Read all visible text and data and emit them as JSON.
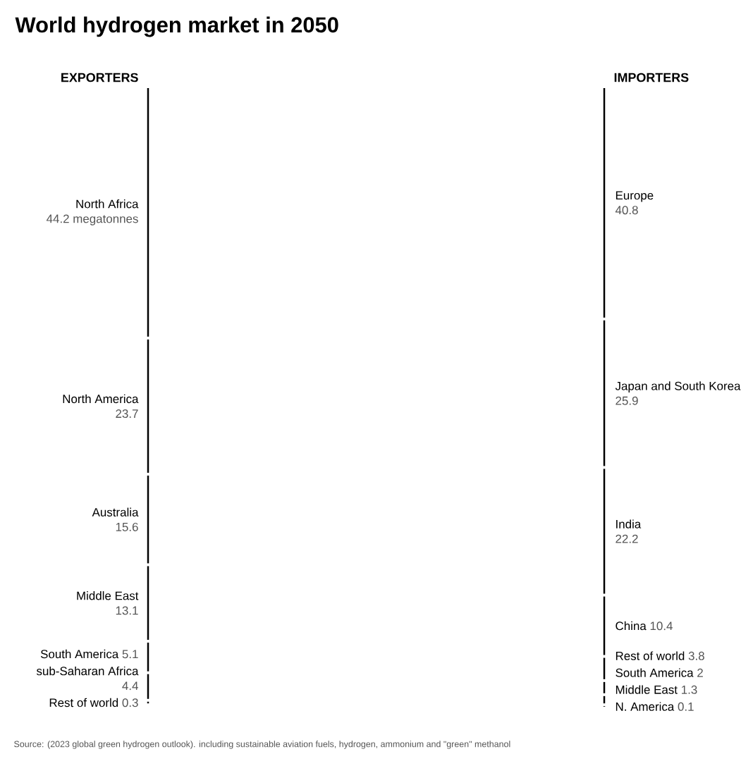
{
  "chart_data": [
    {
      "type": "other",
      "title": "World hydrogen market in 2050",
      "subtitle": "EXPORTERS",
      "categories": [
        "North Africa",
        "North America",
        "Australia",
        "Middle East",
        "South America",
        "sub-Saharan Africa",
        "Rest of world"
      ],
      "values": [
        44.2,
        23.7,
        15.6,
        13.1,
        5.1,
        4.4,
        0.3
      ],
      "value_labels": [
        "44.2 megatonnes",
        "23.7",
        "15.6",
        "13.1",
        "5.1",
        "4.4",
        "0.3"
      ],
      "annotations": [
        "Source: (2023 global green hydrogen outlook). including sustainable aviation fuels, hydrogen, ammonium and \"green\" methanol"
      ]
    },
    {
      "type": "other",
      "subtitle": "IMPORTERS",
      "categories": [
        "Europe",
        "Japan and South Korea",
        "India",
        "China",
        "Rest of world",
        "South America",
        "Middle East",
        "N. America"
      ],
      "values": [
        40.8,
        25.9,
        22.2,
        10.4,
        3.8,
        2,
        1.3,
        0.1
      ],
      "value_labels": [
        "40.8",
        "25.9",
        "22.2",
        "10.4",
        "3.8",
        "2",
        "1.3",
        "0.1"
      ]
    }
  ]
}
